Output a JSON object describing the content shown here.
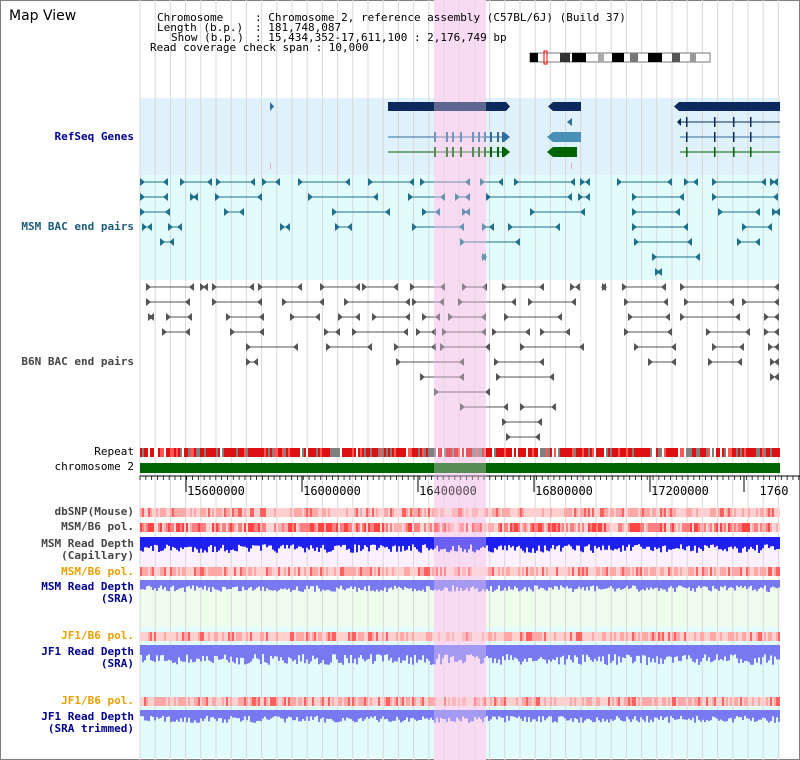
{
  "title": "Map View",
  "info": {
    "chromosome_label": "Chromosome",
    "chromosome_value": ": Chromosome 2, reference assembly (C57BL/6J) (Build 37)",
    "length_label": "Length (b.p.)",
    "length_value": ": 181,748,087",
    "show_label": "Show (b.p.)",
    "show_value": ": 15,434,352-17,611,100 : 2,176,749 bp",
    "read_coverage": "Read coverage check span : 10,000"
  },
  "tracks": {
    "refseq": "RefSeq Genes",
    "msm_bac": "MSM BAC end pairs",
    "b6n_bac": "B6N BAC end pairs",
    "repeat": "Repeat",
    "chromosome": "chromosome 2",
    "dbsnp": "dbSNP(Mouse)",
    "msm_b6_pol": "MSM/B6 pol.",
    "msm_read_cap_1": "MSM Read Depth",
    "msm_read_cap_2": "(Capillary)",
    "msm_b6_pol_2": "MSM/B6 pol.",
    "msm_read_sra_1": "MSM Read Depth",
    "msm_read_sra_2": "(SRA)",
    "jf1_b6_pol": "JF1/B6 pol.",
    "jf1_read_sra_1": "JF1 Read Depth",
    "jf1_read_sra_2": "(SRA)",
    "jf1_b6_pol_2": "JF1/B6 pol.",
    "jf1_read_trim_1": "JF1 Read Depth",
    "jf1_read_trim_2": "(SRA trimmed)"
  },
  "ruler_ticks": [
    "15600000",
    "16000000",
    "16400000",
    "16800000",
    "17200000",
    "1760"
  ],
  "colors": {
    "refseq_bg": "#dff1fb",
    "msm_bg": "#e2fbfb",
    "highlight": "#f9daf3",
    "gene_dark": "#0b2a5b",
    "gene_teal": "#4a8fb8",
    "gene_green": "#006400",
    "chromosome_bar": "#006400",
    "read_depth_blue": "#1f1ff0",
    "read_depth_light": "#7878f0",
    "label_blue": "#00008b",
    "label_orange": "#e8a000"
  }
}
